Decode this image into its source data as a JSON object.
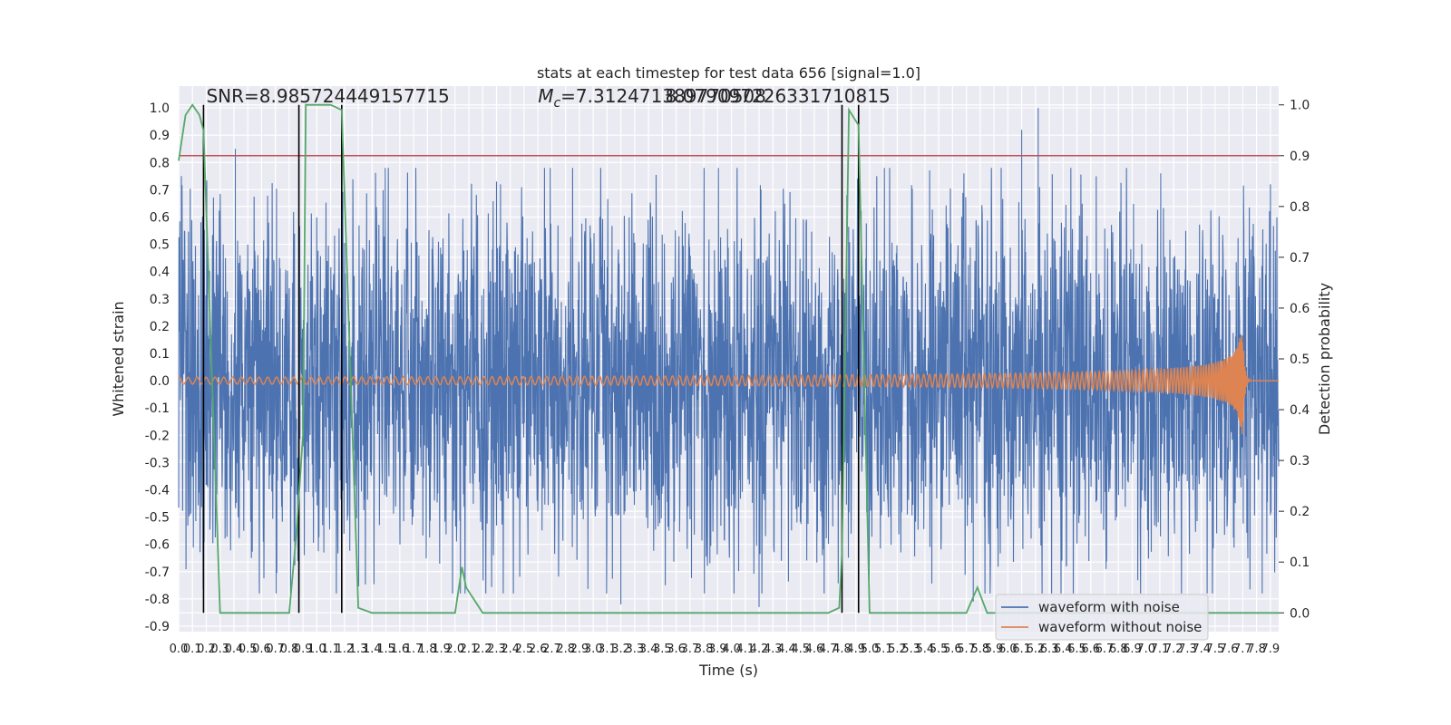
{
  "chart_data": {
    "type": "line",
    "title": "stats at each timestep for test data 656 [signal=1.0]",
    "xlabel": "Time (s)",
    "ylabel_left": "Whitened strain",
    "ylabel_right": "Detection probability",
    "xlim": [
      0.0,
      7.96
    ],
    "ylim_left": [
      -0.92,
      1.08
    ],
    "ylim_right": [
      -0.037,
      1.037
    ],
    "grid": true,
    "legend_position": "lower-right",
    "x_ticks": [
      "0.0",
      "0.1",
      "0.2",
      "0.3",
      "0.4",
      "0.5",
      "0.6",
      "0.7",
      "0.8",
      "0.9",
      "1.0",
      "1.1",
      "1.2",
      "1.3",
      "1.4",
      "1.5",
      "1.6",
      "1.7",
      "1.8",
      "1.9",
      "2.0",
      "2.1",
      "2.2",
      "2.3",
      "2.4",
      "2.5",
      "2.6",
      "2.7",
      "2.8",
      "2.9",
      "3.0",
      "3.1",
      "3.2",
      "3.3",
      "3.4",
      "3.5",
      "3.6",
      "3.7",
      "3.8",
      "3.9",
      "4.0",
      "4.1",
      "4.2",
      "4.3",
      "4.4",
      "4.5",
      "4.6",
      "4.7",
      "4.8",
      "4.9",
      "5.0",
      "5.1",
      "5.2",
      "5.3",
      "5.4",
      "5.5",
      "5.6",
      "5.7",
      "5.8",
      "5.9",
      "6.0",
      "6.1",
      "6.2",
      "6.3",
      "6.4",
      "6.5",
      "6.6",
      "6.7",
      "6.8",
      "6.9",
      "7.0",
      "7.1",
      "7.2",
      "7.3",
      "7.4",
      "7.5",
      "7.6",
      "7.7",
      "7.8",
      "7.9"
    ],
    "y_ticks_left": [
      "-0.9",
      "-0.8",
      "-0.7",
      "-0.6",
      "-0.5",
      "-0.4",
      "-0.3",
      "-0.2",
      "-0.1",
      "0.0",
      "0.1",
      "0.2",
      "0.3",
      "0.4",
      "0.5",
      "0.6",
      "0.7",
      "0.8",
      "0.9",
      "1.0"
    ],
    "y_ticks_right": [
      "0.0",
      "0.1",
      "0.2",
      "0.3",
      "0.4",
      "0.5",
      "0.6",
      "0.7",
      "0.8",
      "0.9",
      "1.0"
    ],
    "annotations": [
      {
        "text": "SNR=8.985724449157715",
        "x": 0.2,
        "y": 1.02
      },
      {
        "mc_prefix": "M",
        "mc_sub": "c",
        "mc_value": "=7.312471389770508",
        "x": 2.6,
        "y": 1.02
      },
      {
        "text": "8.079097226331710815",
        "x": 3.6,
        "y": 1.02
      }
    ],
    "threshold_line": {
      "axis": "right",
      "y": 0.9,
      "color": "#c44e52"
    },
    "vertical_lines": [
      0.18,
      0.87,
      1.18,
      4.8,
      4.92
    ],
    "series": [
      {
        "name": "waveform with noise",
        "color": "#4c72b0",
        "description": "whitened noisy strain, ~±0.5 typical with spikes to ~1.0",
        "peaks": [
          {
            "x": 0.02,
            "y": 0.75
          },
          {
            "x": 0.41,
            "y": 0.85
          },
          {
            "x": 2.3,
            "y": 0.73
          },
          {
            "x": 6.1,
            "y": 0.92
          },
          {
            "x": 6.22,
            "y": 1.0
          },
          {
            "x": 7.9,
            "y": 0.72
          },
          {
            "x": 4.2,
            "y": -0.83
          },
          {
            "x": 3.2,
            "y": -0.82
          },
          {
            "x": 5.75,
            "y": -0.81
          }
        ]
      },
      {
        "name": "waveform without noise",
        "color": "#dd8452",
        "description": "chirp, amplitude growing from ~0.01 to ~0.2 at merger t≈7.7s then ringdown to 0",
        "merger_time": 7.7,
        "peak_amplitude": 0.2
      },
      {
        "name": "",
        "axis": "right",
        "color": "#55a868",
        "x": [
          0.0,
          0.05,
          0.1,
          0.15,
          0.18,
          0.3,
          0.4,
          0.5,
          0.6,
          0.7,
          0.8,
          0.85,
          0.9,
          0.92,
          1.0,
          1.1,
          1.18,
          1.3,
          1.4,
          1.5,
          2.0,
          2.05,
          2.08,
          2.2,
          4.7,
          4.78,
          4.8,
          4.85,
          4.92,
          5.0,
          5.5,
          5.7,
          5.78,
          5.85,
          6.0,
          7.0,
          7.96
        ],
        "y": [
          0.89,
          0.98,
          1.0,
          0.98,
          0.95,
          0.0,
          0.0,
          0.0,
          0.0,
          0.0,
          0.0,
          0.15,
          0.35,
          1.0,
          1.0,
          1.0,
          0.99,
          0.01,
          0.0,
          0.0,
          0.0,
          0.09,
          0.05,
          0.0,
          0.0,
          0.01,
          0.12,
          0.99,
          0.96,
          0.0,
          0.0,
          0.0,
          0.05,
          0.0,
          0.0,
          0.0,
          0.0
        ]
      }
    ]
  }
}
